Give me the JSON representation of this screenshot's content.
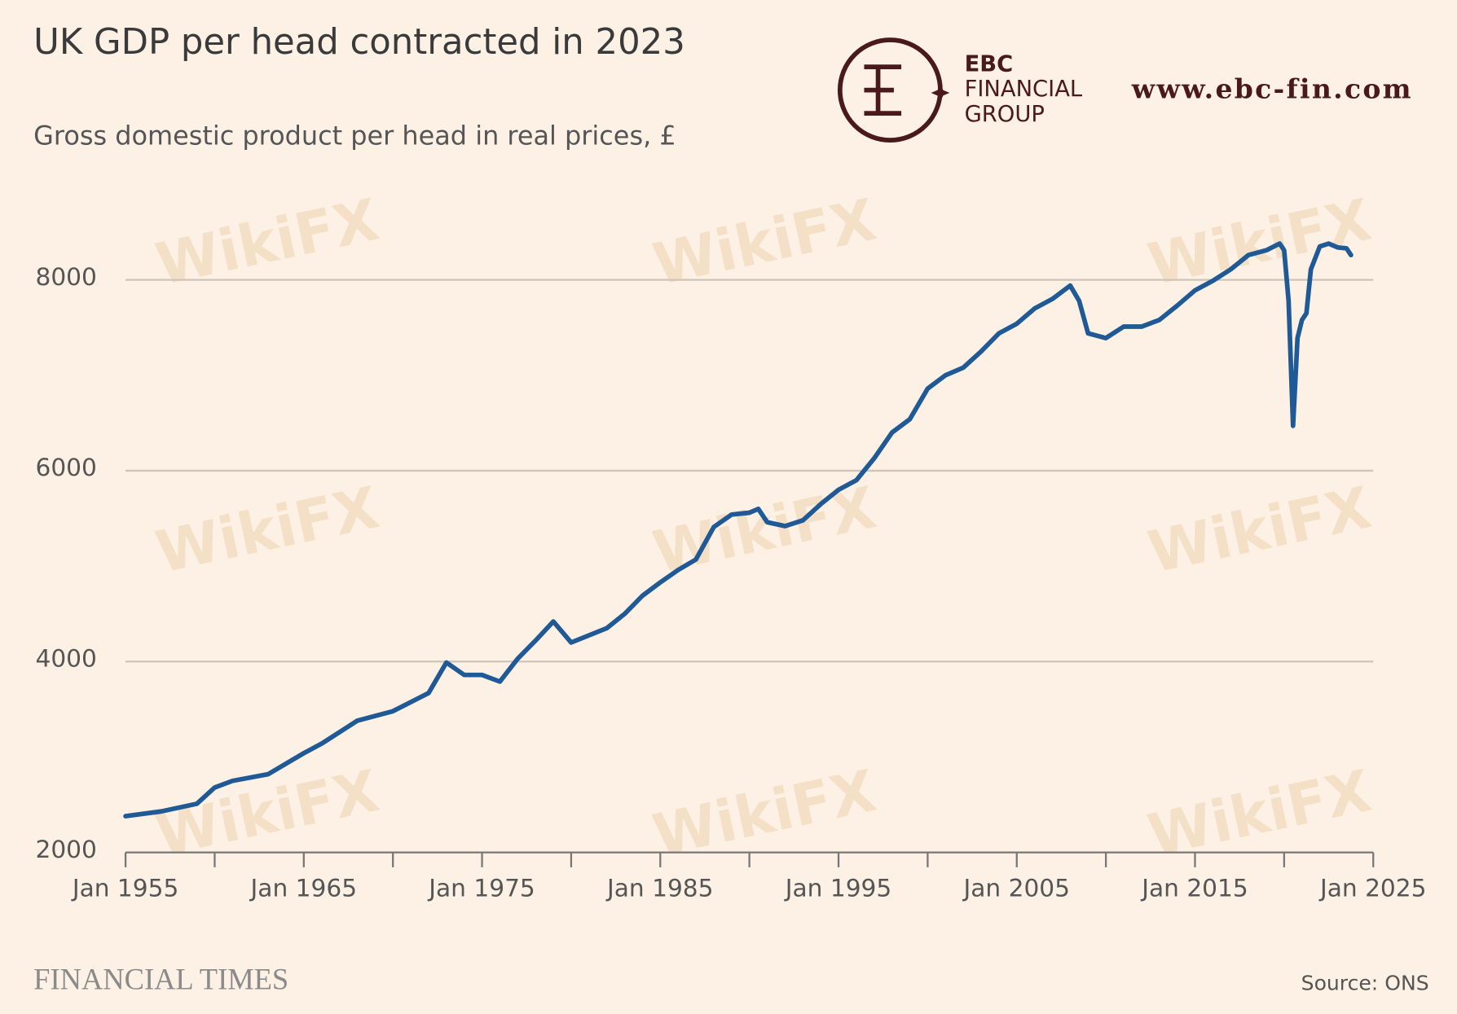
{
  "chart_data": {
    "type": "line",
    "title": "UK GDP per head contracted in 2023",
    "subtitle": "Gross domestic product per head in real prices, £",
    "source": "Source: ONS",
    "publisher": "FINANCIAL TIMES",
    "logo": {
      "line1": "EBC",
      "line2": "FINANCIAL",
      "line3": "GROUP",
      "url": "www.ebc-fin.com"
    },
    "watermark": "WikiFX",
    "x": [
      1955,
      1957,
      1959,
      1960,
      1961,
      1963,
      1965,
      1966,
      1968,
      1970,
      1972,
      1973,
      1974,
      1975,
      1976,
      1977,
      1978,
      1979,
      1980,
      1982,
      1983,
      1984,
      1985,
      1986,
      1987,
      1988,
      1989,
      1990,
      1990.5,
      1991,
      1992,
      1993,
      1994,
      1995,
      1996,
      1997,
      1998,
      1999,
      2000,
      2001,
      2002,
      2003,
      2004,
      2005,
      2006,
      2007,
      2008,
      2008.5,
      2009,
      2010,
      2011,
      2012,
      2013,
      2014,
      2015,
      2016,
      2017,
      2018,
      2019,
      2019.75,
      2020,
      2020.25,
      2020.5,
      2020.75,
      2021,
      2021.25,
      2021.5,
      2022,
      2022.5,
      2023,
      2023.5,
      2023.75
    ],
    "series": [
      {
        "name": "GDP per head",
        "color": "#1f5a96",
        "values": [
          2380,
          2430,
          2510,
          2680,
          2750,
          2820,
          3040,
          3140,
          3380,
          3480,
          3670,
          3990,
          3860,
          3860,
          3790,
          4030,
          4220,
          4420,
          4200,
          4350,
          4500,
          4690,
          4830,
          4960,
          5070,
          5410,
          5540,
          5560,
          5600,
          5460,
          5420,
          5480,
          5650,
          5800,
          5900,
          6130,
          6400,
          6540,
          6860,
          7000,
          7080,
          7250,
          7440,
          7540,
          7700,
          7800,
          7940,
          7780,
          7440,
          7390,
          7510,
          7510,
          7580,
          7730,
          7890,
          7990,
          8110,
          8260,
          8310,
          8380,
          8310,
          7780,
          6470,
          7390,
          7580,
          7650,
          8110,
          8350,
          8380,
          8340,
          8330,
          8260
        ]
      }
    ],
    "xlim": [
      1955,
      2025
    ],
    "xticks": [
      {
        "value": 1955,
        "label": "Jan 1955"
      },
      {
        "value": 1965,
        "label": "Jan 1965"
      },
      {
        "value": 1975,
        "label": "Jan 1975"
      },
      {
        "value": 1985,
        "label": "Jan 1985"
      },
      {
        "value": 1995,
        "label": "Jan 1995"
      },
      {
        "value": 2005,
        "label": "Jan 2005"
      },
      {
        "value": 2015,
        "label": "Jan 2015"
      },
      {
        "value": 2025,
        "label": "Jan 2025"
      }
    ],
    "xminorticks": [
      1960,
      1970,
      1980,
      1990,
      2000,
      2010,
      2020
    ],
    "ylim": [
      2000,
      8500
    ],
    "yticks": [
      2000,
      4000,
      6000,
      8000
    ],
    "grid": true
  }
}
